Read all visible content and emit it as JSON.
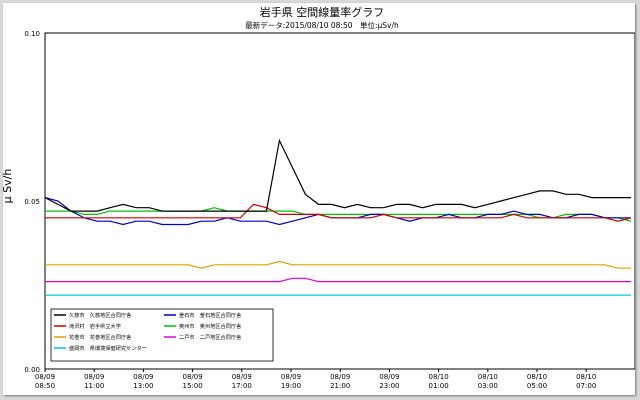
{
  "chart_data": {
    "type": "line",
    "title": "岩手県 空間線量率グラフ",
    "subtitle": "最新データ:2015/08/10 08:50　単位:μSv/h",
    "ylabel": "μ Sv/h",
    "ylim": [
      0.0,
      0.1
    ],
    "yticks": [
      "0.00",
      "0.05",
      "0.10"
    ],
    "grid": false,
    "legend_position": "bottom-left",
    "xticks": [
      {
        "line1": "08/09",
        "line2": "08:50"
      },
      {
        "line1": "08/09",
        "line2": "11:00"
      },
      {
        "line1": "08/09",
        "line2": "13:00"
      },
      {
        "line1": "08/09",
        "line2": "15:00"
      },
      {
        "line1": "08/09",
        "line2": "17:00"
      },
      {
        "line1": "08/09",
        "line2": "19:00"
      },
      {
        "line1": "08/09",
        "line2": "21:00"
      },
      {
        "line1": "08/09",
        "line2": "23:00"
      },
      {
        "line1": "08/10",
        "line2": "01:00"
      },
      {
        "line1": "08/10",
        "line2": "03:00"
      },
      {
        "line1": "08/10",
        "line2": "05:00"
      },
      {
        "line1": "08/10",
        "line2": "07:00"
      }
    ],
    "series": [
      {
        "name": "久慈市　久慈地区合同庁舎",
        "color": "#000000",
        "values": [
          0.051,
          0.049,
          0.047,
          0.047,
          0.047,
          0.048,
          0.049,
          0.048,
          0.048,
          0.047,
          0.047,
          0.047,
          0.047,
          0.047,
          0.047,
          0.047,
          0.047,
          0.047,
          0.068,
          0.06,
          0.052,
          0.049,
          0.049,
          0.048,
          0.049,
          0.048,
          0.048,
          0.049,
          0.049,
          0.048,
          0.049,
          0.049,
          0.049,
          0.048,
          0.049,
          0.05,
          0.051,
          0.052,
          0.053,
          0.053,
          0.052,
          0.052,
          0.051,
          0.051,
          0.051,
          0.051
        ]
      },
      {
        "name": "滝沢村　岩手県立大学",
        "color": "#d00000",
        "values": [
          0.045,
          0.045,
          0.045,
          0.045,
          0.045,
          0.045,
          0.045,
          0.045,
          0.045,
          0.045,
          0.045,
          0.045,
          0.045,
          0.045,
          0.045,
          0.045,
          0.049,
          0.048,
          0.046,
          0.046,
          0.046,
          0.046,
          0.045,
          0.045,
          0.045,
          0.045,
          0.046,
          0.045,
          0.045,
          0.045,
          0.045,
          0.045,
          0.045,
          0.045,
          0.045,
          0.045,
          0.046,
          0.045,
          0.045,
          0.045,
          0.045,
          0.045,
          0.045,
          0.045,
          0.044,
          0.045
        ]
      },
      {
        "name": "花巻市　花巻地区合同庁舎",
        "color": "#e0a000",
        "values": [
          0.031,
          0.031,
          0.031,
          0.031,
          0.031,
          0.031,
          0.031,
          0.031,
          0.031,
          0.031,
          0.031,
          0.031,
          0.03,
          0.031,
          0.031,
          0.031,
          0.031,
          0.031,
          0.032,
          0.031,
          0.031,
          0.031,
          0.031,
          0.031,
          0.031,
          0.031,
          0.031,
          0.031,
          0.031,
          0.031,
          0.031,
          0.031,
          0.031,
          0.031,
          0.031,
          0.031,
          0.031,
          0.031,
          0.031,
          0.031,
          0.031,
          0.031,
          0.031,
          0.031,
          0.03,
          0.03
        ]
      },
      {
        "name": "盛岡市　県環境保健研究センター",
        "color": "#00c8d8",
        "values": [
          0.022,
          0.022,
          0.022,
          0.022,
          0.022,
          0.022,
          0.022,
          0.022,
          0.022,
          0.022,
          0.022,
          0.022,
          0.022,
          0.022,
          0.022,
          0.022,
          0.022,
          0.022,
          0.022,
          0.022,
          0.022,
          0.022,
          0.022,
          0.022,
          0.022,
          0.022,
          0.022,
          0.022,
          0.022,
          0.022,
          0.022,
          0.022,
          0.022,
          0.022,
          0.022,
          0.022,
          0.022,
          0.022,
          0.022,
          0.022,
          0.022,
          0.022,
          0.022,
          0.022,
          0.022,
          0.022
        ]
      },
      {
        "name": "釜石市　釜石地区合同庁舎",
        "color": "#0000c0",
        "values": [
          0.051,
          0.05,
          0.047,
          0.045,
          0.044,
          0.044,
          0.043,
          0.044,
          0.044,
          0.043,
          0.043,
          0.043,
          0.044,
          0.044,
          0.045,
          0.044,
          0.044,
          0.044,
          0.043,
          0.044,
          0.045,
          0.046,
          0.045,
          0.045,
          0.045,
          0.046,
          0.046,
          0.045,
          0.044,
          0.045,
          0.045,
          0.046,
          0.045,
          0.045,
          0.046,
          0.046,
          0.047,
          0.046,
          0.046,
          0.045,
          0.045,
          0.046,
          0.046,
          0.045,
          0.045,
          0.045
        ]
      },
      {
        "name": "奥州市　奥州地区合同庁舎",
        "color": "#00c000",
        "values": [
          0.047,
          0.047,
          0.047,
          0.046,
          0.046,
          0.047,
          0.047,
          0.047,
          0.047,
          0.047,
          0.047,
          0.047,
          0.047,
          0.048,
          0.047,
          0.047,
          0.047,
          0.047,
          0.047,
          0.047,
          0.046,
          0.046,
          0.046,
          0.046,
          0.046,
          0.046,
          0.046,
          0.046,
          0.046,
          0.046,
          0.046,
          0.046,
          0.046,
          0.046,
          0.046,
          0.046,
          0.046,
          0.046,
          0.045,
          0.045,
          0.046,
          0.046,
          0.046,
          0.045,
          0.045,
          0.044
        ]
      },
      {
        "name": "二戸市　二戸地区合同庁舎",
        "color": "#e000e0",
        "values": [
          0.026,
          0.026,
          0.026,
          0.026,
          0.026,
          0.026,
          0.026,
          0.026,
          0.026,
          0.026,
          0.026,
          0.026,
          0.026,
          0.026,
          0.026,
          0.026,
          0.026,
          0.026,
          0.026,
          0.027,
          0.027,
          0.026,
          0.026,
          0.026,
          0.026,
          0.026,
          0.026,
          0.026,
          0.026,
          0.026,
          0.026,
          0.026,
          0.026,
          0.026,
          0.026,
          0.026,
          0.026,
          0.026,
          0.026,
          0.026,
          0.026,
          0.026,
          0.026,
          0.026,
          0.026,
          0.026
        ]
      }
    ]
  }
}
